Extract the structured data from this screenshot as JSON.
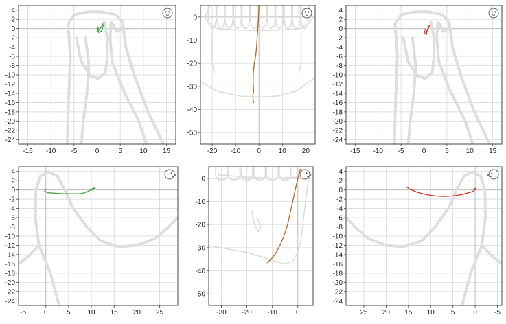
{
  "chart_data": [
    {
      "id": "p1",
      "type": "line",
      "view": "frontal",
      "background": "jaw-front",
      "color": "#3aa33a",
      "xlim": [
        -17,
        17
      ],
      "ylim": [
        -25,
        5
      ],
      "xticks": [
        -15,
        -10,
        -5,
        0,
        5,
        10,
        15
      ],
      "yticks": [
        4,
        2,
        0,
        -2,
        -4,
        -6,
        -8,
        -10,
        -12,
        -14,
        -16,
        -18,
        -20,
        -22,
        -24
      ],
      "xtick_labels": [
        "-15",
        "-10",
        "-5",
        "0",
        "5",
        "10",
        "15"
      ],
      "ytick_labels": [
        "4",
        "2",
        "0",
        "-2",
        "-4",
        "-6",
        "-8",
        "-10",
        "-12",
        "-14",
        "-16",
        "-18",
        "-20",
        "-22",
        "-24"
      ],
      "series": [
        {
          "x": [
            0.2,
            0.0,
            0.3,
            0.7,
            1.0,
            1.1,
            1.3,
            1.2,
            1.0,
            0.6,
            0.3,
            0.2
          ],
          "y": [
            0.2,
            -0.4,
            -0.8,
            -0.7,
            -0.4,
            0.0,
            0.6,
            1.0,
            0.5,
            -0.1,
            -0.5,
            0.2
          ]
        }
      ]
    },
    {
      "id": "p2",
      "type": "line",
      "view": "frontal-teeth",
      "background": "teeth-front",
      "color": "#c0631a",
      "xlim": [
        -25,
        24
      ],
      "ylim": [
        -55,
        5
      ],
      "xticks": [
        -20,
        -10,
        0,
        10,
        20
      ],
      "yticks": [
        0,
        -10,
        -20,
        -30,
        -40,
        -50
      ],
      "xtick_labels": [
        "-20",
        "-10",
        "0",
        "10",
        "20"
      ],
      "ytick_labels": [
        "0",
        "-10",
        "-20",
        "-30",
        "-40",
        "-50"
      ],
      "series": [
        {
          "x": [
            0.0,
            -0.3,
            -0.7,
            -1.1,
            -1.6,
            -2.0,
            -2.4,
            -2.5,
            -2.3,
            -2.6,
            -2.5,
            -2.3
          ],
          "y": [
            5.0,
            -2.0,
            -8.0,
            -14.0,
            -18.0,
            -20.0,
            -24.0,
            -28.0,
            -32.0,
            -34.0,
            -36.0,
            -37.0
          ]
        }
      ]
    },
    {
      "id": "p3",
      "type": "line",
      "view": "frontal",
      "background": "jaw-front",
      "color": "#d42d1f",
      "xlim": [
        -17,
        17
      ],
      "ylim": [
        -25,
        5
      ],
      "xticks": [
        -15,
        -10,
        -5,
        0,
        5,
        10,
        15
      ],
      "yticks": [
        4,
        2,
        0,
        -2,
        -4,
        -6,
        -8,
        -10,
        -12,
        -14,
        -16,
        -18,
        -20,
        -22,
        -24
      ],
      "xtick_labels": [
        "-15",
        "-10",
        "-5",
        "0",
        "5",
        "10",
        "15"
      ],
      "ytick_labels": [
        "4",
        "2",
        "0",
        "-2",
        "-4",
        "-6",
        "-8",
        "-10",
        "-12",
        "-14",
        "-16",
        "-18",
        "-20",
        "-22",
        "-24"
      ],
      "series": [
        {
          "x": [
            0.0,
            0.1,
            0.3,
            0.5,
            0.6,
            0.8,
            1.0,
            1.2,
            1.1,
            0.9,
            0.6,
            0.3
          ],
          "y": [
            0.0,
            -0.6,
            -1.2,
            -1.3,
            -0.8,
            -0.2,
            0.3,
            0.7,
            0.4,
            -0.1,
            -0.6,
            -0.2
          ]
        }
      ]
    },
    {
      "id": "p4",
      "type": "line",
      "view": "lateral",
      "background": "jaw-side",
      "color": "#3aa33a",
      "xlim": [
        -6,
        29
      ],
      "ylim": [
        -25,
        5
      ],
      "xticks": [
        -5,
        0,
        5,
        10,
        15,
        20,
        25
      ],
      "yticks": [
        4,
        2,
        0,
        -2,
        -4,
        -6,
        -8,
        -10,
        -12,
        -14,
        -16,
        -18,
        -20,
        -22,
        -24
      ],
      "xtick_labels": [
        "-5",
        "0",
        "5",
        "10",
        "15",
        "20",
        "25"
      ],
      "ytick_labels": [
        "4",
        "2",
        "0",
        "-2",
        "-4",
        "-6",
        "-8",
        "-10",
        "-12",
        "-14",
        "-16",
        "-18",
        "-20",
        "-22",
        "-24"
      ],
      "series": [
        {
          "x": [
            0.0,
            -0.3,
            0.5,
            2.0,
            4.0,
            6.0,
            7.5,
            8.5,
            9.5,
            10.3,
            10.8,
            10.2,
            10.8
          ],
          "y": [
            0.2,
            -0.3,
            -0.6,
            -0.7,
            -0.8,
            -0.8,
            -0.8,
            -0.6,
            -0.2,
            0.3,
            0.5,
            0.0,
            0.4
          ]
        }
      ]
    },
    {
      "id": "p5",
      "type": "line",
      "view": "lateral-teeth",
      "background": "teeth-side",
      "color": "#c0631a",
      "xlim": [
        -35,
        6
      ],
      "ylim": [
        -55,
        5
      ],
      "xticks": [
        -30,
        -20,
        -10,
        0
      ],
      "yticks": [
        0,
        -10,
        -20,
        -30,
        -40,
        -50
      ],
      "xtick_labels": [
        "-30",
        "-20",
        "-10",
        "0"
      ],
      "ytick_labels": [
        "0",
        "-10",
        "-20",
        "-30",
        "-40",
        "-50"
      ],
      "series": [
        {
          "x": [
            1.0,
            0.0,
            -1.0,
            -2.0,
            -3.0,
            -4.0,
            -5.5,
            -7.0,
            -9.0,
            -11.0,
            -12.0
          ],
          "y": [
            4.0,
            0.0,
            -5.0,
            -10.0,
            -15.0,
            -20.0,
            -25.0,
            -29.0,
            -33.0,
            -35.5,
            -36.5
          ]
        }
      ]
    },
    {
      "id": "p6",
      "type": "line",
      "view": "lateral-mirrored",
      "background": "jaw-side-mirrored",
      "color": "#d42d1f",
      "xlim": [
        29,
        -6
      ],
      "ylim": [
        -25,
        5
      ],
      "xticks": [
        25,
        20,
        15,
        10,
        5,
        0,
        -5
      ],
      "yticks": [
        4,
        2,
        0,
        -2,
        -4,
        -6,
        -8,
        -10,
        -12,
        -14,
        -16,
        -18,
        -20,
        -22,
        -24
      ],
      "xtick_labels": [
        "25",
        "20",
        "15",
        "10",
        "5",
        "0",
        "-5"
      ],
      "ytick_labels": [
        "4",
        "2",
        "0",
        "-2",
        "-4",
        "-6",
        "-8",
        "-10",
        "-12",
        "-14",
        "-16",
        "-18",
        "-20",
        "-22",
        "-24"
      ],
      "series": [
        {
          "x": [
            15.5,
            14.5,
            13.0,
            11.0,
            9.0,
            7.0,
            5.0,
            3.0,
            1.5,
            0.5,
            0.0,
            -0.2,
            0.3
          ],
          "y": [
            0.7,
            0.1,
            -0.5,
            -1.0,
            -1.3,
            -1.4,
            -1.3,
            -1.0,
            -0.6,
            -0.3,
            0.1,
            0.4,
            0.2
          ]
        }
      ]
    }
  ]
}
